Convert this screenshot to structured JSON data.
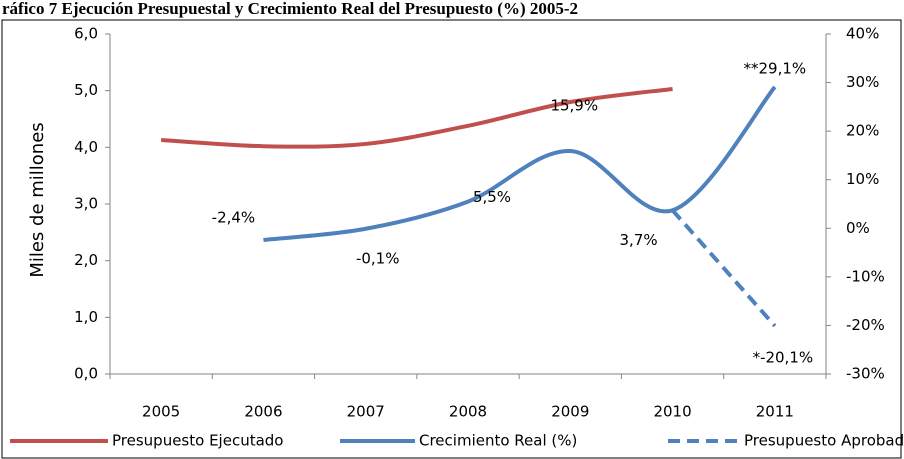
{
  "chart_data": {
    "type": "line",
    "title": "ráfico 7 Ejecución Presupuestal y Crecimiento Real  del Presupuesto (%) 2005-2",
    "y_label": "Miles de millones",
    "categories": [
      "2005",
      "2006",
      "2007",
      "2008",
      "2009",
      "2010",
      "2011"
    ],
    "ylim": [
      0,
      6
    ],
    "yticks": [
      {
        "value": 0,
        "label": "0,0"
      },
      {
        "value": 1,
        "label": "1,0"
      },
      {
        "value": 2,
        "label": "2,0"
      },
      {
        "value": 3,
        "label": "3,0"
      },
      {
        "value": 4,
        "label": "4,0"
      },
      {
        "value": 5,
        "label": "5,0"
      },
      {
        "value": 6,
        "label": "6,0"
      }
    ],
    "y2lim": [
      -30,
      40
    ],
    "y2ticks": [
      {
        "value": -30,
        "label": "-30%"
      },
      {
        "value": -20,
        "label": "-20%"
      },
      {
        "value": -10,
        "label": "-10%"
      },
      {
        "value": 0,
        "label": "0%"
      },
      {
        "value": 10,
        "label": "10%"
      },
      {
        "value": 20,
        "label": "20%"
      },
      {
        "value": 30,
        "label": "30%"
      },
      {
        "value": 40,
        "label": "40%"
      }
    ],
    "legend": "bottom",
    "series": [
      {
        "name": "Presupuesto Ejecutado",
        "color": "#c0504d",
        "values": [
          4.13,
          4.02,
          4.06,
          4.38,
          4.8,
          5.03,
          null
        ]
      },
      {
        "name": "Crecimiento Real (%)",
        "color": "#4f81bd",
        "axis": "y2",
        "values": [
          null,
          -2.4,
          -0.1,
          5.5,
          15.9,
          3.7,
          29.1
        ],
        "value_labels": [
          null,
          "-2,4%",
          "-0,1%",
          "5,5%",
          "15,9%",
          "3,7%",
          "**29,1%"
        ]
      },
      {
        "name": "Presupuesto Aprobado",
        "color": "#4f81bd",
        "axis": "y2",
        "dashed": true,
        "values": [
          null,
          null,
          null,
          null,
          null,
          3.7,
          -20.1
        ],
        "value_labels": [
          null,
          null,
          null,
          null,
          null,
          null,
          "*-20,1%"
        ]
      }
    ]
  }
}
